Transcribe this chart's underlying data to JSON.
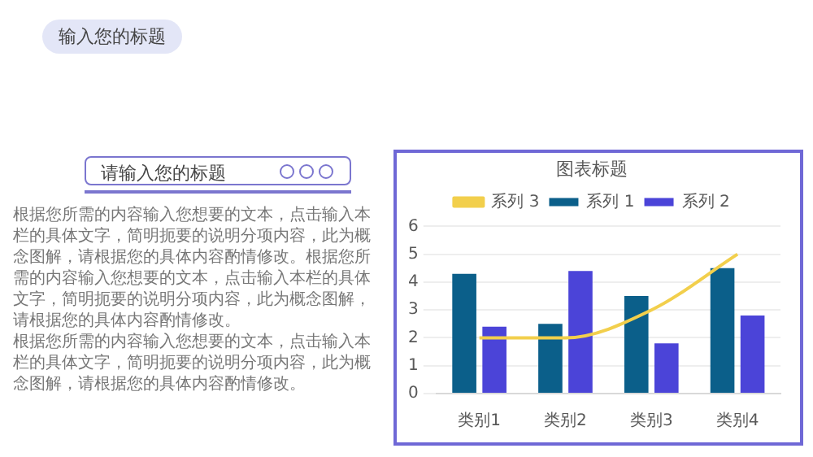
{
  "chart_data": {
    "type": "bar",
    "title": "图表标题",
    "categories": [
      "类别1",
      "类别2",
      "类别3",
      "类别4"
    ],
    "series": [
      {
        "name": "系列 1",
        "color": "#0b5f8a",
        "values": [
          4.3,
          2.5,
          3.5,
          4.5
        ]
      },
      {
        "name": "系列 2",
        "color": "#4b44d8",
        "values": [
          2.4,
          4.4,
          1.8,
          2.8
        ]
      },
      {
        "name": "系列 3",
        "color": "#f2cf4c",
        "type": "line",
        "marker": "none",
        "values": [
          2,
          2,
          3,
          5
        ]
      }
    ],
    "ylim": [
      0,
      6
    ],
    "yticks": [
      0,
      1,
      2,
      3,
      4,
      5,
      6
    ],
    "grid": "y",
    "legend": "top",
    "annotations": [
      "输入您的标题",
      "请输入您的标题",
      "根据您所需的内容输入您想要的文本，点击输入本栏的具体文字，简明扼要的说明分项内容，此为概念图解，请根据您的具体内容酌情修改。根据您所需的内容输入您想要的文本，点击输入本栏的具体文字，简明扼要的说明分项内容，此为概念图解，请根据您的具体内容酌情修改。",
      "根据您所需的内容输入您想要的文本，点击输入本栏的具体文字，简明扼要的说明分项内容，此为概念图解，请根据您的具体内容酌情修改。"
    ]
  }
}
